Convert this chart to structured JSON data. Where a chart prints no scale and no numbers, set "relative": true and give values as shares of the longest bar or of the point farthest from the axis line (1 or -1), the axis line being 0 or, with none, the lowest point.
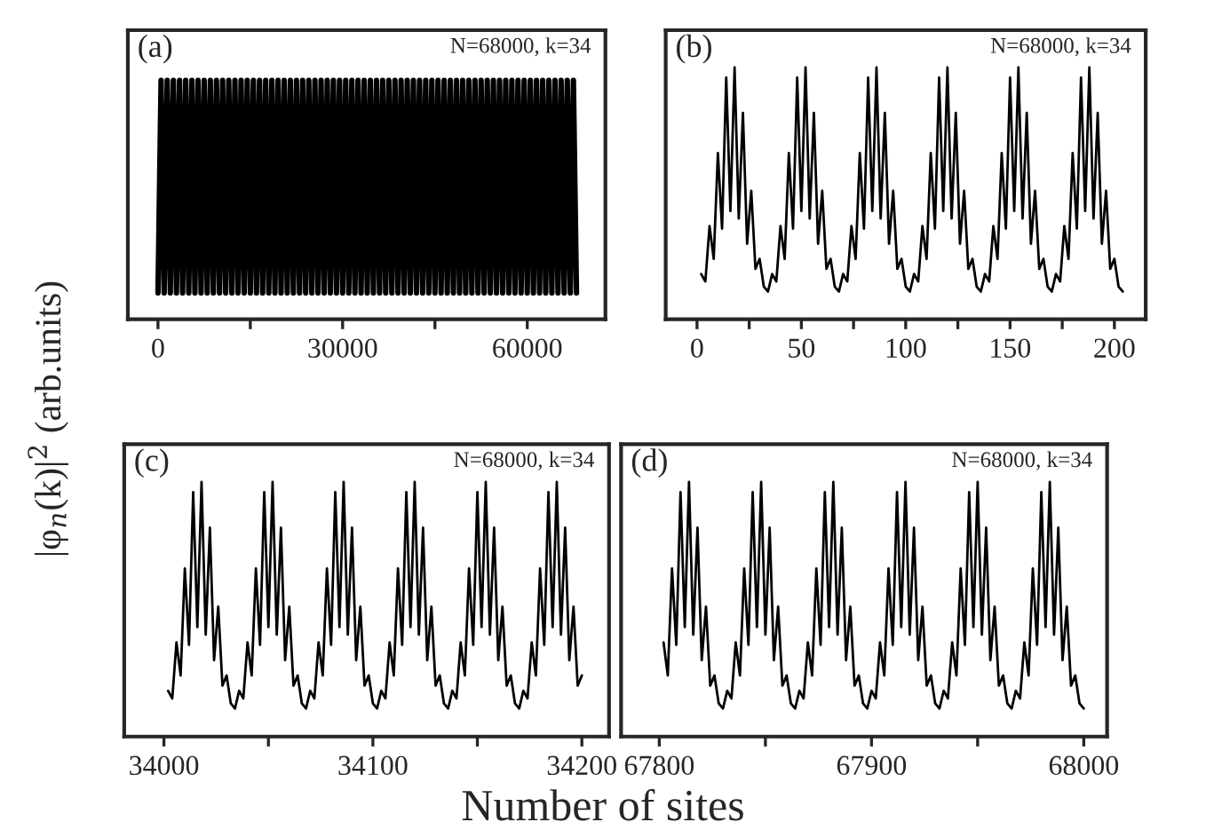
{
  "chart_data": [
    {
      "type": "line",
      "relative": true,
      "ylabel": "|φ$_{n}$(k)|$^{2}$ (arb.units)",
      "annotations": [
        "(a)",
        "N=68000, k=34"
      ],
      "xlim": [
        -4900,
        72700
      ],
      "xticks": [
        0,
        {
          "value": 15000,
          "label": null
        },
        30000,
        {
          "value": 45000,
          "label": null
        },
        60000
      ],
      "line_style": "solid",
      "marker": "none",
      "series": [
        {
          "color": "#000000",
          "x": [
            0,
            500,
            1000,
            1500,
            2000,
            2500,
            3000,
            3500,
            4000,
            4500,
            5000,
            5500,
            6000,
            6500,
            7000,
            7500,
            8000,
            8500,
            9000,
            9500,
            10000,
            10500,
            11000,
            11500,
            12000,
            12500,
            13000,
            13500,
            14000,
            14500,
            15000,
            15500,
            16000,
            16500,
            17000,
            17500,
            18000,
            18500,
            19000,
            19500,
            20000,
            20500,
            21000,
            21500,
            22000,
            22500,
            23000,
            23500,
            24000,
            24500,
            25000,
            25500,
            26000,
            26500,
            27000,
            27500,
            28000,
            28500,
            29000,
            29500,
            30000,
            30500,
            31000,
            31500,
            32000,
            32500,
            33000,
            33500,
            34000,
            34500,
            35000,
            35500,
            36000,
            36500,
            37000,
            37500,
            38000,
            38500,
            39000,
            39500,
            40000,
            40500,
            41000,
            41500,
            42000,
            42500,
            43000,
            43500,
            44000,
            44500,
            45000,
            45500,
            46000,
            46500,
            47000,
            47500,
            48000,
            48500,
            49000,
            49500,
            50000,
            50500,
            51000,
            51500,
            52000,
            52500,
            53000,
            53500,
            54000,
            54500,
            55000,
            55500,
            56000,
            56500,
            57000,
            57500,
            58000,
            58500,
            59000,
            59500,
            60000,
            60500,
            61000,
            61500,
            62000,
            62500,
            63000,
            63500,
            64000,
            64500,
            65000,
            65500,
            66000,
            66500,
            67000,
            67500,
            68000
          ],
          "values": [
            0.11,
            1,
            0.11,
            1,
            0.11,
            1,
            0.11,
            1,
            0.11,
            1,
            0.11,
            1,
            0.11,
            1,
            0.11,
            1,
            0.11,
            1,
            0.11,
            1,
            0.11,
            1,
            0.11,
            1,
            0.11,
            1,
            0.11,
            1,
            0.11,
            1,
            0.11,
            1,
            0.11,
            1,
            0.11,
            1,
            0.11,
            1,
            0.11,
            1,
            0.11,
            1,
            0.11,
            1,
            0.11,
            1,
            0.11,
            1,
            0.11,
            1,
            0.11,
            1,
            0.11,
            1,
            0.11,
            1,
            0.11,
            1,
            0.11,
            1,
            0.11,
            1,
            0.11,
            1,
            0.11,
            1,
            0.11,
            1,
            0.11,
            1,
            0.11,
            1,
            0.11,
            1,
            0.11,
            1,
            0.11,
            1,
            0.11,
            1,
            0.11,
            1,
            0.11,
            1,
            0.11,
            1,
            0.11,
            1,
            0.11,
            1,
            0.11,
            1,
            0.11,
            1,
            0.11,
            1,
            0.11,
            1,
            0.11,
            1,
            0.11,
            1,
            0.11,
            1,
            0.11,
            1,
            0.11,
            1,
            0.11,
            1,
            0.11,
            1,
            0.11,
            1,
            0.11,
            1,
            0.11,
            1,
            0.11,
            1,
            0.11,
            1,
            0.11,
            1,
            0.11,
            1,
            0.11,
            1,
            0.11,
            1,
            0.11,
            1,
            0.11,
            1,
            0.11,
            1,
            0.11
          ]
        }
      ]
    },
    {
      "type": "line",
      "relative": true,
      "annotations": [
        "(b)",
        "N=68000, k=34"
      ],
      "xlim": [
        -15,
        215
      ],
      "xticks": [
        0,
        {
          "value": 25,
          "label": null
        },
        50,
        {
          "value": 75,
          "label": null
        },
        100,
        {
          "value": 125,
          "label": null
        },
        150,
        {
          "value": 175,
          "label": null
        },
        200
      ],
      "line_style": "solid",
      "marker": "none",
      "series": [
        {
          "color": "#000000",
          "x": [
            2,
            4,
            6,
            8,
            10,
            12,
            14,
            16,
            18,
            20,
            22,
            24,
            26,
            28,
            30,
            32,
            34,
            36,
            38,
            40,
            42,
            44,
            46,
            48,
            50,
            52,
            54,
            56,
            58,
            60,
            62,
            64,
            66,
            68,
            70,
            72,
            74,
            76,
            78,
            80,
            82,
            84,
            86,
            88,
            90,
            92,
            94,
            96,
            98,
            100,
            102,
            104,
            106,
            108,
            110,
            112,
            114,
            116,
            118,
            120,
            122,
            124,
            126,
            128,
            130,
            132,
            134,
            136,
            138,
            140,
            142,
            144,
            146,
            148,
            150,
            152,
            154,
            156,
            158,
            160,
            162,
            164,
            166,
            168,
            170,
            172,
            174,
            176,
            178,
            180,
            182,
            184,
            186,
            188,
            190,
            192,
            194,
            196,
            198,
            200,
            202,
            204
          ],
          "values": [
            0.18,
            0.15,
            0.37,
            0.24,
            0.66,
            0.36,
            0.96,
            0.43,
            1.0,
            0.4,
            0.82,
            0.3,
            0.51,
            0.2,
            0.24,
            0.13,
            0.11,
            0.18,
            0.15,
            0.37,
            0.24,
            0.66,
            0.36,
            0.96,
            0.43,
            1.0,
            0.4,
            0.82,
            0.3,
            0.51,
            0.2,
            0.24,
            0.13,
            0.11,
            0.18,
            0.15,
            0.37,
            0.24,
            0.66,
            0.36,
            0.96,
            0.43,
            1.0,
            0.4,
            0.82,
            0.3,
            0.51,
            0.2,
            0.24,
            0.13,
            0.11,
            0.18,
            0.15,
            0.37,
            0.24,
            0.66,
            0.36,
            0.96,
            0.43,
            1.0,
            0.4,
            0.82,
            0.3,
            0.51,
            0.2,
            0.24,
            0.13,
            0.11,
            0.18,
            0.15,
            0.37,
            0.24,
            0.66,
            0.36,
            0.96,
            0.43,
            1.0,
            0.4,
            0.82,
            0.3,
            0.51,
            0.2,
            0.24,
            0.13,
            0.11,
            0.18,
            0.15,
            0.37,
            0.24,
            0.66,
            0.36,
            0.96,
            0.43,
            1.0,
            0.4,
            0.82,
            0.3,
            0.51,
            0.2,
            0.24,
            0.13,
            0.11
          ]
        }
      ]
    },
    {
      "type": "line",
      "relative": true,
      "xlabel": "Number of sites",
      "annotations": [
        "(c)",
        "N=68000, k=34"
      ],
      "xlim": [
        33981,
        34213
      ],
      "xticks": [
        34000,
        {
          "value": 34050,
          "label": null
        },
        34100,
        {
          "value": 34150,
          "label": null
        },
        34200
      ],
      "line_style": "solid",
      "marker": "none",
      "series": [
        {
          "color": "#000000",
          "x": [
            34002,
            34004,
            34006,
            34008,
            34010,
            34012,
            34014,
            34016,
            34018,
            34020,
            34022,
            34024,
            34026,
            34028,
            34030,
            34032,
            34034,
            34036,
            34038,
            34040,
            34042,
            34044,
            34046,
            34048,
            34050,
            34052,
            34054,
            34056,
            34058,
            34060,
            34062,
            34064,
            34066,
            34068,
            34070,
            34072,
            34074,
            34076,
            34078,
            34080,
            34082,
            34084,
            34086,
            34088,
            34090,
            34092,
            34094,
            34096,
            34098,
            34100,
            34102,
            34104,
            34106,
            34108,
            34110,
            34112,
            34114,
            34116,
            34118,
            34120,
            34122,
            34124,
            34126,
            34128,
            34130,
            34132,
            34134,
            34136,
            34138,
            34140,
            34142,
            34144,
            34146,
            34148,
            34150,
            34152,
            34154,
            34156,
            34158,
            34160,
            34162,
            34164,
            34166,
            34168,
            34170,
            34172,
            34174,
            34176,
            34178,
            34180,
            34182,
            34184,
            34186,
            34188,
            34190,
            34192,
            34194,
            34196,
            34198,
            34200
          ],
          "values": [
            0.18,
            0.15,
            0.37,
            0.24,
            0.66,
            0.36,
            0.96,
            0.43,
            1.0,
            0.4,
            0.82,
            0.3,
            0.51,
            0.2,
            0.24,
            0.13,
            0.11,
            0.18,
            0.15,
            0.37,
            0.24,
            0.66,
            0.36,
            0.96,
            0.43,
            1.0,
            0.4,
            0.82,
            0.3,
            0.51,
            0.2,
            0.24,
            0.13,
            0.11,
            0.18,
            0.15,
            0.37,
            0.24,
            0.66,
            0.36,
            0.96,
            0.43,
            1.0,
            0.4,
            0.82,
            0.3,
            0.51,
            0.2,
            0.24,
            0.13,
            0.11,
            0.18,
            0.15,
            0.37,
            0.24,
            0.66,
            0.36,
            0.96,
            0.43,
            1.0,
            0.4,
            0.82,
            0.3,
            0.51,
            0.2,
            0.24,
            0.13,
            0.11,
            0.18,
            0.15,
            0.37,
            0.24,
            0.66,
            0.36,
            0.96,
            0.43,
            1.0,
            0.4,
            0.82,
            0.3,
            0.51,
            0.2,
            0.24,
            0.13,
            0.11,
            0.18,
            0.15,
            0.37,
            0.24,
            0.66,
            0.36,
            0.96,
            0.43,
            1.0,
            0.4,
            0.82,
            0.3,
            0.51,
            0.2,
            0.24
          ]
        }
      ]
    },
    {
      "type": "line",
      "relative": true,
      "annotations": [
        "(d)",
        "N=68000, k=34"
      ],
      "xlim": [
        67782,
        68011
      ],
      "xticks": [
        67800,
        {
          "value": 67850,
          "label": null
        },
        67900,
        {
          "value": 67950,
          "label": null
        },
        68000
      ],
      "line_style": "solid",
      "marker": "none",
      "series": [
        {
          "color": "#000000",
          "x": [
            67802,
            67804,
            67806,
            67808,
            67810,
            67812,
            67814,
            67816,
            67818,
            67820,
            67822,
            67824,
            67826,
            67828,
            67830,
            67832,
            67834,
            67836,
            67838,
            67840,
            67842,
            67844,
            67846,
            67848,
            67850,
            67852,
            67854,
            67856,
            67858,
            67860,
            67862,
            67864,
            67866,
            67868,
            67870,
            67872,
            67874,
            67876,
            67878,
            67880,
            67882,
            67884,
            67886,
            67888,
            67890,
            67892,
            67894,
            67896,
            67898,
            67900,
            67902,
            67904,
            67906,
            67908,
            67910,
            67912,
            67914,
            67916,
            67918,
            67920,
            67922,
            67924,
            67926,
            67928,
            67930,
            67932,
            67934,
            67936,
            67938,
            67940,
            67942,
            67944,
            67946,
            67948,
            67950,
            67952,
            67954,
            67956,
            67958,
            67960,
            67962,
            67964,
            67966,
            67968,
            67970,
            67972,
            67974,
            67976,
            67978,
            67980,
            67982,
            67984,
            67986,
            67988,
            67990,
            67992,
            67994,
            67996,
            67998,
            68000
          ],
          "values": [
            0.37,
            0.24,
            0.66,
            0.36,
            0.96,
            0.43,
            1.0,
            0.4,
            0.82,
            0.3,
            0.51,
            0.2,
            0.24,
            0.13,
            0.11,
            0.18,
            0.15,
            0.37,
            0.24,
            0.66,
            0.36,
            0.96,
            0.43,
            1.0,
            0.4,
            0.82,
            0.3,
            0.51,
            0.2,
            0.24,
            0.13,
            0.11,
            0.18,
            0.15,
            0.37,
            0.24,
            0.66,
            0.36,
            0.96,
            0.43,
            1.0,
            0.4,
            0.82,
            0.3,
            0.51,
            0.2,
            0.24,
            0.13,
            0.11,
            0.18,
            0.15,
            0.37,
            0.24,
            0.66,
            0.36,
            0.96,
            0.43,
            1.0,
            0.4,
            0.82,
            0.3,
            0.51,
            0.2,
            0.24,
            0.13,
            0.11,
            0.18,
            0.15,
            0.37,
            0.24,
            0.66,
            0.36,
            0.96,
            0.43,
            1.0,
            0.4,
            0.82,
            0.3,
            0.51,
            0.2,
            0.24,
            0.13,
            0.11,
            0.18,
            0.15,
            0.37,
            0.24,
            0.66,
            0.36,
            0.96,
            0.43,
            1.0,
            0.4,
            0.82,
            0.3,
            0.51,
            0.2,
            0.24,
            0.13,
            0.11
          ]
        }
      ]
    }
  ]
}
